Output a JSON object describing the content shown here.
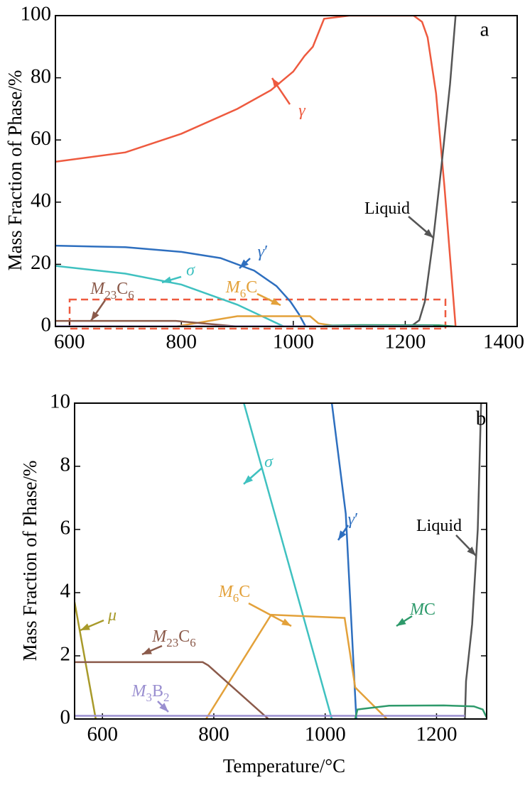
{
  "chart_data": [
    {
      "type": "line",
      "panel": "a",
      "ylabel": "Mass Fraction of Phase/%",
      "xlim": [
        575,
        1400
      ],
      "xticks": [
        600,
        800,
        1000,
        1200,
        1400
      ],
      "ylim": [
        0,
        100
      ],
      "yticks": [
        0,
        20,
        40,
        60,
        80,
        100
      ],
      "series": [
        {
          "name": "γ",
          "color": "#ee5a3f",
          "x": [
            575,
            700,
            800,
            900,
            960,
            1000,
            1020,
            1035,
            1055,
            1100,
            1215,
            1230,
            1240,
            1255,
            1270,
            1290
          ],
          "values": [
            53,
            56,
            62,
            70,
            76,
            82,
            87,
            90,
            99,
            100,
            100,
            98,
            93,
            75,
            45,
            0
          ]
        },
        {
          "name": "Liquid",
          "color": "#555555",
          "x": [
            575,
            1210,
            1225,
            1235,
            1250,
            1265,
            1280,
            1290
          ],
          "values": [
            0,
            0,
            2,
            8,
            28,
            52,
            78,
            100
          ]
        },
        {
          "name": "γ′",
          "color": "#2e6fbf",
          "x": [
            575,
            700,
            800,
            870,
            930,
            970,
            995,
            1010,
            1022
          ],
          "values": [
            26,
            25.5,
            24,
            22,
            18,
            13,
            8,
            4,
            0
          ]
        },
        {
          "name": "σ",
          "color": "#3fc1c0",
          "x": [
            575,
            700,
            800,
            900,
            983
          ],
          "values": [
            19.5,
            17,
            13.5,
            7,
            0
          ]
        },
        {
          "name": "M6C",
          "color": "#e3a13a",
          "x": [
            790,
            900,
            1030,
            1045,
            1080
          ],
          "values": [
            0,
            3.3,
            3.3,
            1,
            0
          ]
        },
        {
          "name": "M23C6",
          "color": "#8b5a4a",
          "x": [
            575,
            790,
            900
          ],
          "values": [
            1.8,
            1.8,
            0
          ]
        },
        {
          "color": "#2e9a6b",
          "x": [
            1050,
            1060,
            1120,
            1260,
            1290
          ],
          "values": [
            0,
            0.3,
            0.45,
            0.4,
            0
          ]
        },
        {
          "color": "#9a8fd0",
          "x": [
            575,
            1250
          ],
          "values": [
            0.1,
            0.1
          ]
        }
      ]
    },
    {
      "type": "line",
      "panel": "b",
      "ylabel": "Mass Fraction of Phase/%",
      "xlabel": "Temperature/°C",
      "xlim": [
        550,
        1290
      ],
      "xticks": [
        600,
        800,
        1000,
        1200
      ],
      "ylim": [
        0,
        10
      ],
      "yticks": [
        0,
        2,
        4,
        6,
        8,
        10
      ],
      "series": [
        {
          "name": "σ",
          "color": "#3fc1c0",
          "x": [
            854,
            1012
          ],
          "values": [
            10,
            0
          ]
        },
        {
          "name": "γ′",
          "color": "#2e6fbf",
          "x": [
            1012,
            1037,
            1056
          ],
          "values": [
            10,
            6.5,
            0
          ]
        },
        {
          "name": "Liquid",
          "color": "#555555",
          "x": [
            1251,
            1253,
            1264,
            1274,
            1280
          ],
          "values": [
            0,
            1.2,
            3,
            6,
            10
          ]
        },
        {
          "name": "M6C",
          "color": "#e3a13a",
          "x": [
            786,
            903,
            1035,
            1054,
            1111
          ],
          "values": [
            0,
            3.3,
            3.2,
            1,
            0
          ]
        },
        {
          "name": "μ",
          "color": "#a89a2a",
          "x": [
            550,
            588
          ],
          "values": [
            3.7,
            0
          ]
        },
        {
          "name": "M23C6",
          "color": "#8b5a4a",
          "x": [
            550,
            780,
            790,
            898
          ],
          "values": [
            1.8,
            1.8,
            1.7,
            0
          ]
        },
        {
          "name": "M3B2",
          "color": "#9a8fd0",
          "x": [
            550,
            1251
          ],
          "values": [
            0.1,
            0.1
          ]
        },
        {
          "name": "MC",
          "color": "#2e9a6b",
          "x": [
            1054,
            1058,
            1115,
            1213,
            1267,
            1283,
            1290
          ],
          "values": [
            0,
            0.3,
            0.42,
            0.43,
            0.4,
            0.3,
            0.05
          ]
        }
      ]
    }
  ]
}
